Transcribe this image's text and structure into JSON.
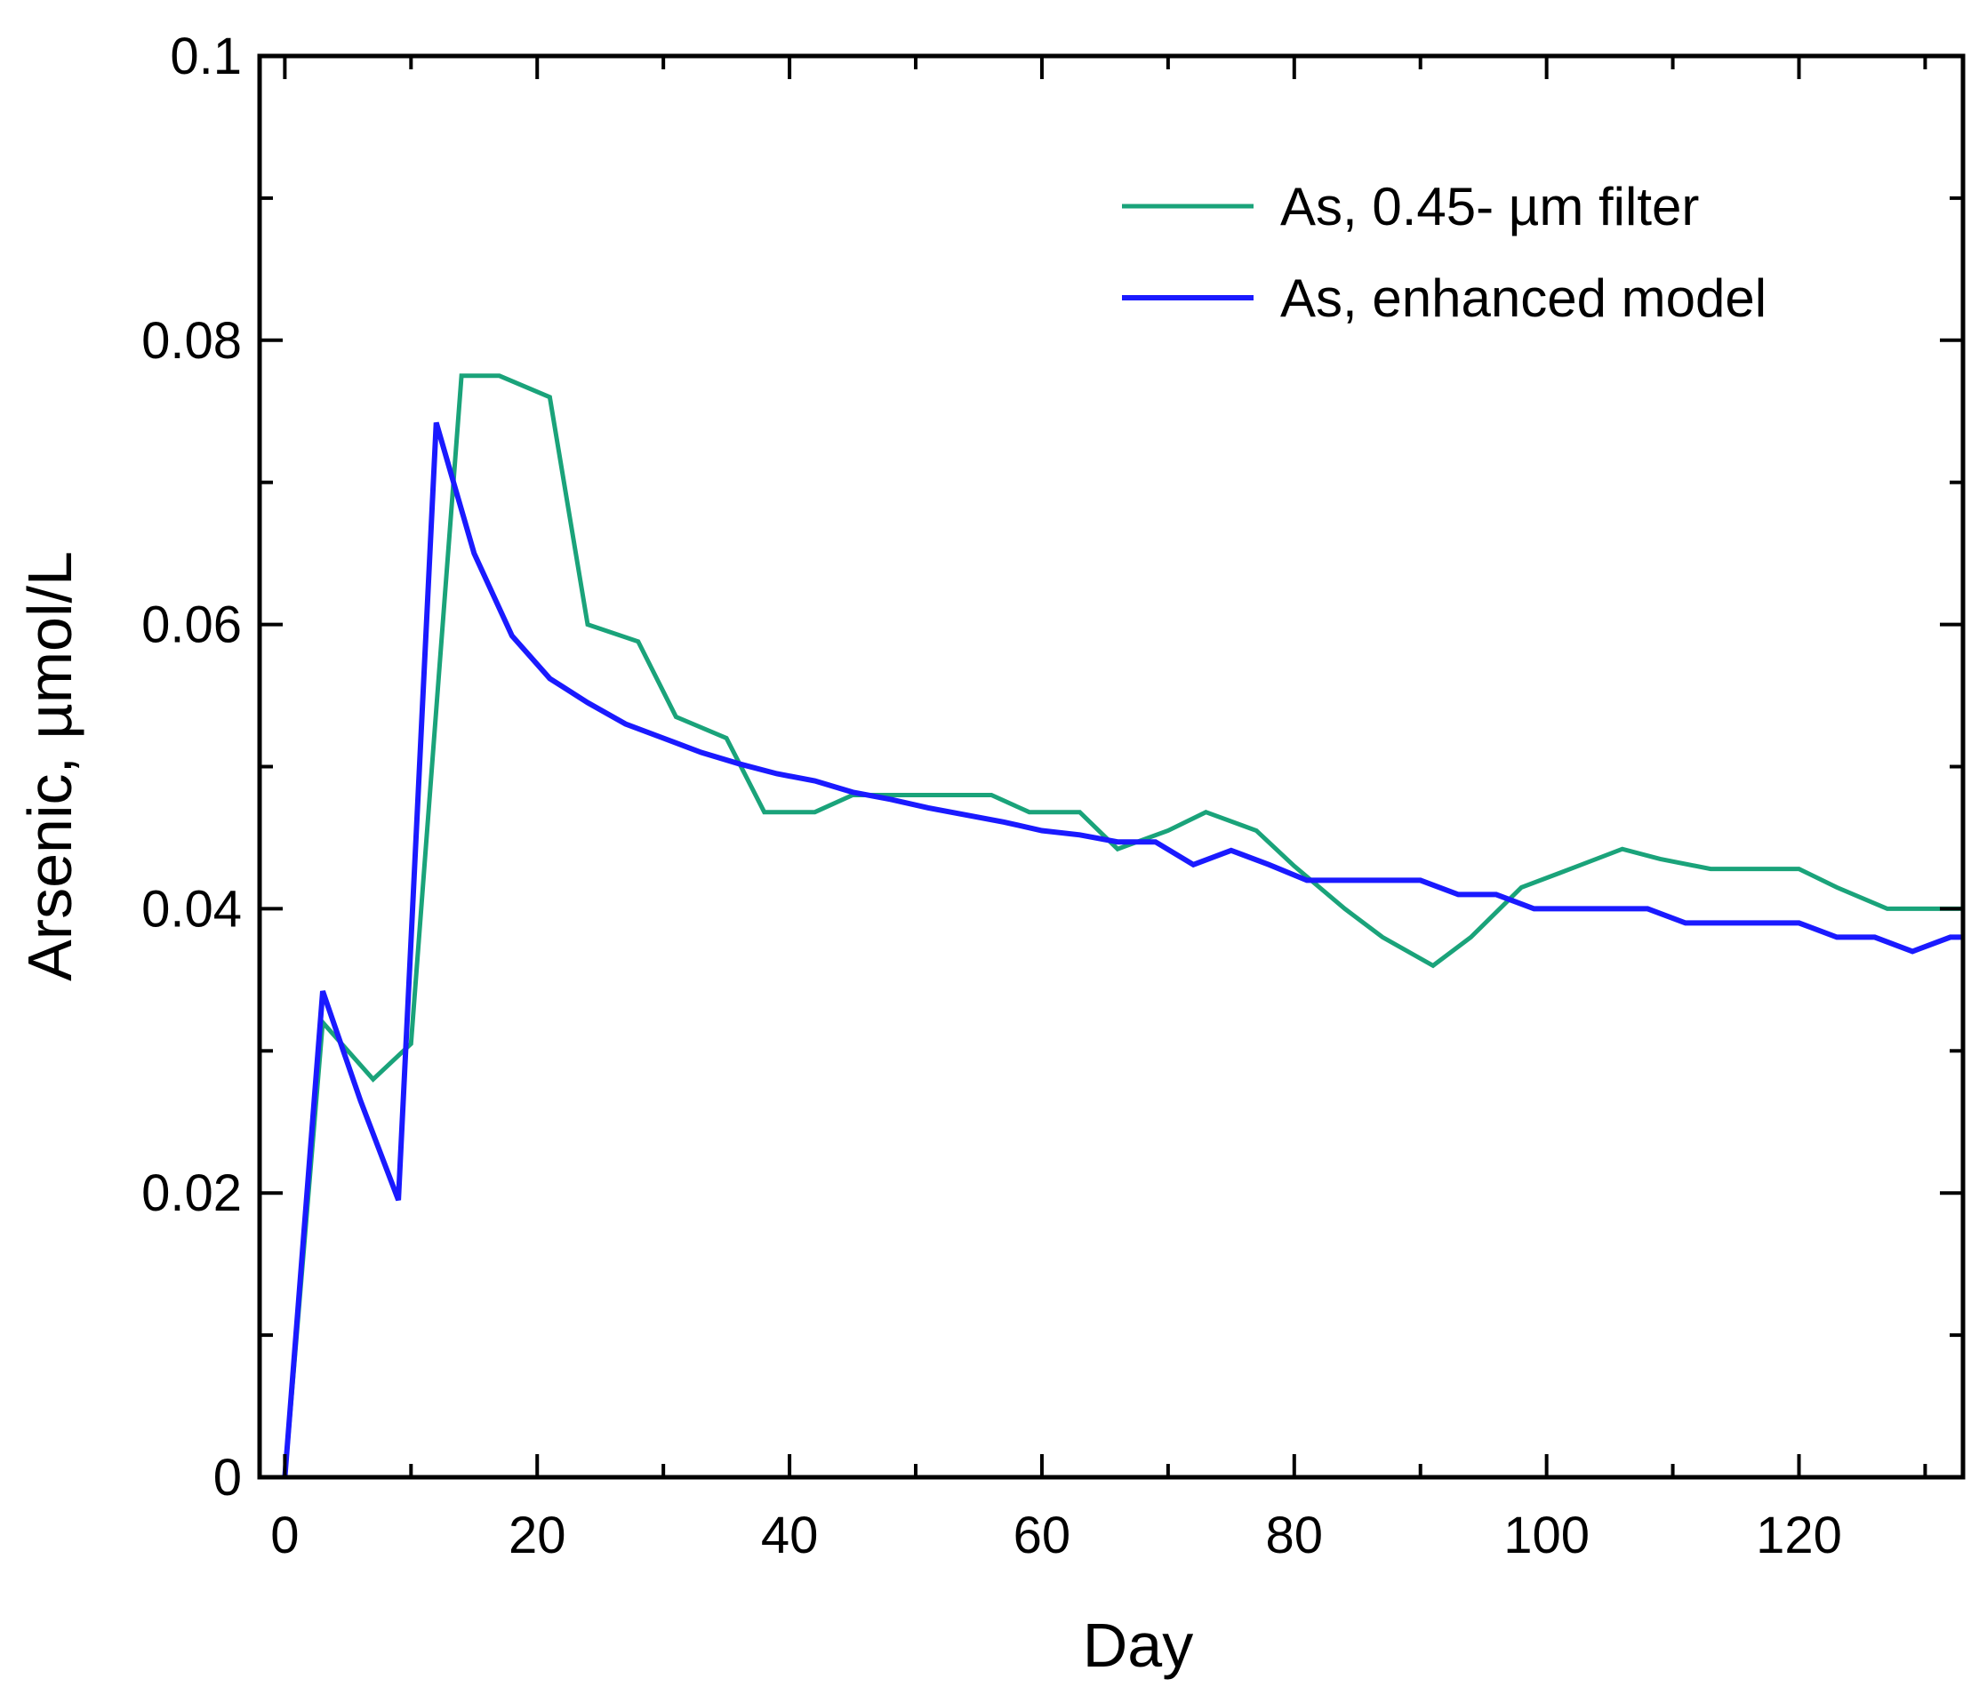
{
  "chart_data": {
    "type": "line",
    "title": "",
    "xlabel": "Day",
    "ylabel": "Arsenic, µmol/L",
    "xlim": [
      -2,
      133
    ],
    "ylim": [
      0,
      0.1
    ],
    "x_ticks": [
      0,
      20,
      40,
      60,
      80,
      100,
      120
    ],
    "x_tick_labels": [
      "0",
      "20",
      "40",
      "60",
      "80",
      "100",
      "120"
    ],
    "x_minor_ticks": [
      10,
      30,
      50,
      70,
      90,
      110,
      130
    ],
    "y_ticks": [
      0,
      0.02,
      0.04,
      0.06,
      0.08,
      0.1
    ],
    "y_tick_labels": [
      "0",
      "0.02",
      "0.04",
      "0.06",
      "0.08",
      "0.1"
    ],
    "y_minor_ticks": [
      0.01,
      0.03,
      0.05,
      0.07,
      0.09
    ],
    "legend_position": "top-right",
    "series": [
      {
        "name": "As, 0.45- µm filter",
        "color": "#1aa37a",
        "x": [
          0,
          3,
          7,
          10,
          14,
          17,
          21,
          24,
          28,
          31,
          35,
          38,
          42,
          45,
          49,
          52,
          56,
          59,
          63,
          66,
          70,
          73,
          77,
          80,
          84,
          87,
          91,
          94,
          98,
          101,
          106,
          109,
          113,
          116,
          120,
          123,
          127,
          130,
          133
        ],
        "y": [
          0,
          0.032,
          0.028,
          0.0305,
          0.0775,
          0.0775,
          0.076,
          0.06,
          0.0588,
          0.0535,
          0.052,
          0.0468,
          0.0468,
          0.048,
          0.048,
          0.048,
          0.048,
          0.0468,
          0.0468,
          0.0442,
          0.0455,
          0.0468,
          0.0455,
          0.043,
          0.04,
          0.038,
          0.036,
          0.038,
          0.0415,
          0.0425,
          0.0442,
          0.0435,
          0.0428,
          0.0428,
          0.0428,
          0.0415,
          0.04,
          0.04,
          0.04
        ]
      },
      {
        "name": "As, enhanced model",
        "color": "#1a1aff",
        "x": [
          0,
          3,
          6,
          9,
          12,
          15,
          18,
          21,
          24,
          27,
          30,
          33,
          36,
          39,
          42,
          45,
          48,
          51,
          54,
          57,
          60,
          63,
          66,
          69,
          72,
          75,
          78,
          81,
          84,
          87,
          90,
          93,
          96,
          99,
          102,
          105,
          108,
          111,
          114,
          117,
          120,
          123,
          126,
          129,
          132,
          133
        ],
        "y": [
          0,
          0.0342,
          0.0265,
          0.0195,
          0.0742,
          0.065,
          0.0592,
          0.0562,
          0.0545,
          0.053,
          0.052,
          0.051,
          0.0502,
          0.0495,
          0.049,
          0.0482,
          0.0477,
          0.0471,
          0.0466,
          0.0461,
          0.0455,
          0.0452,
          0.0447,
          0.0447,
          0.0431,
          0.0441,
          0.0431,
          0.042,
          0.042,
          0.042,
          0.042,
          0.041,
          0.041,
          0.04,
          0.04,
          0.04,
          0.04,
          0.039,
          0.039,
          0.039,
          0.039,
          0.038,
          0.038,
          0.037,
          0.038,
          0.038
        ]
      }
    ]
  }
}
